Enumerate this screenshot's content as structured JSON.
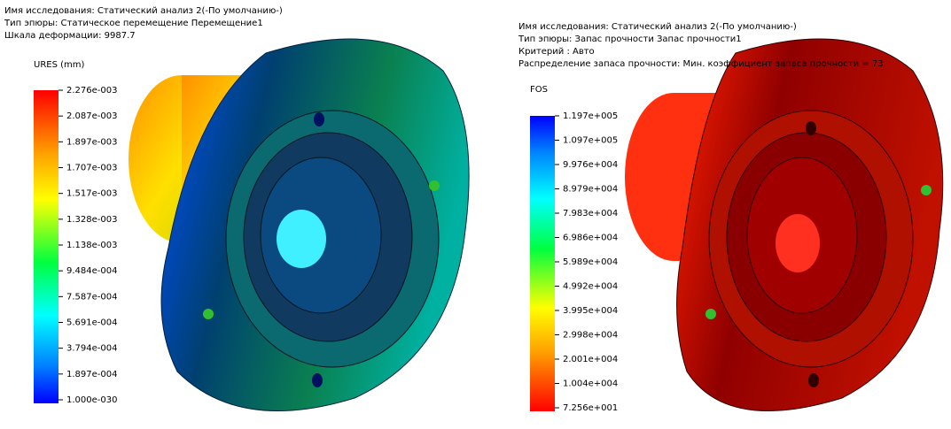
{
  "panels": [
    {
      "header": [
        "Имя  исследования: Статический анализ 2(-По умолчанию-)",
        "Тип эпюры: Статическое перемещение Перемещение1",
        "Шкала деформации: 9987.7"
      ],
      "legend": {
        "title": "URES (mm)",
        "labels": [
          "2.276e-003",
          "2.087e-003",
          "1.897e-003",
          "1.707e-003",
          "1.517e-003",
          "1.328e-003",
          "1.138e-003",
          "9.484e-004",
          "7.587e-004",
          "5.691e-004",
          "3.794e-004",
          "1.897e-004",
          "1.000e-030"
        ]
      }
    },
    {
      "header": [
        "Имя  исследования: Статический анализ 2(-По умолчанию-)",
        "Тип эпюры: Запас прочности Запас прочности1",
        "Критерий : Авто",
        "Распределение запаса прочности: Мин. коэффициент запаса прочности = 73"
      ],
      "legend": {
        "title": "FOS",
        "labels": [
          "1.197e+005",
          "1.097e+005",
          "9.976e+004",
          "8.979e+004",
          "7.983e+004",
          "6.986e+004",
          "5.989e+004",
          "4.992e+004",
          "3.995e+004",
          "2.998e+004",
          "2.001e+004",
          "1.004e+004",
          "7.256e+001"
        ]
      }
    }
  ]
}
